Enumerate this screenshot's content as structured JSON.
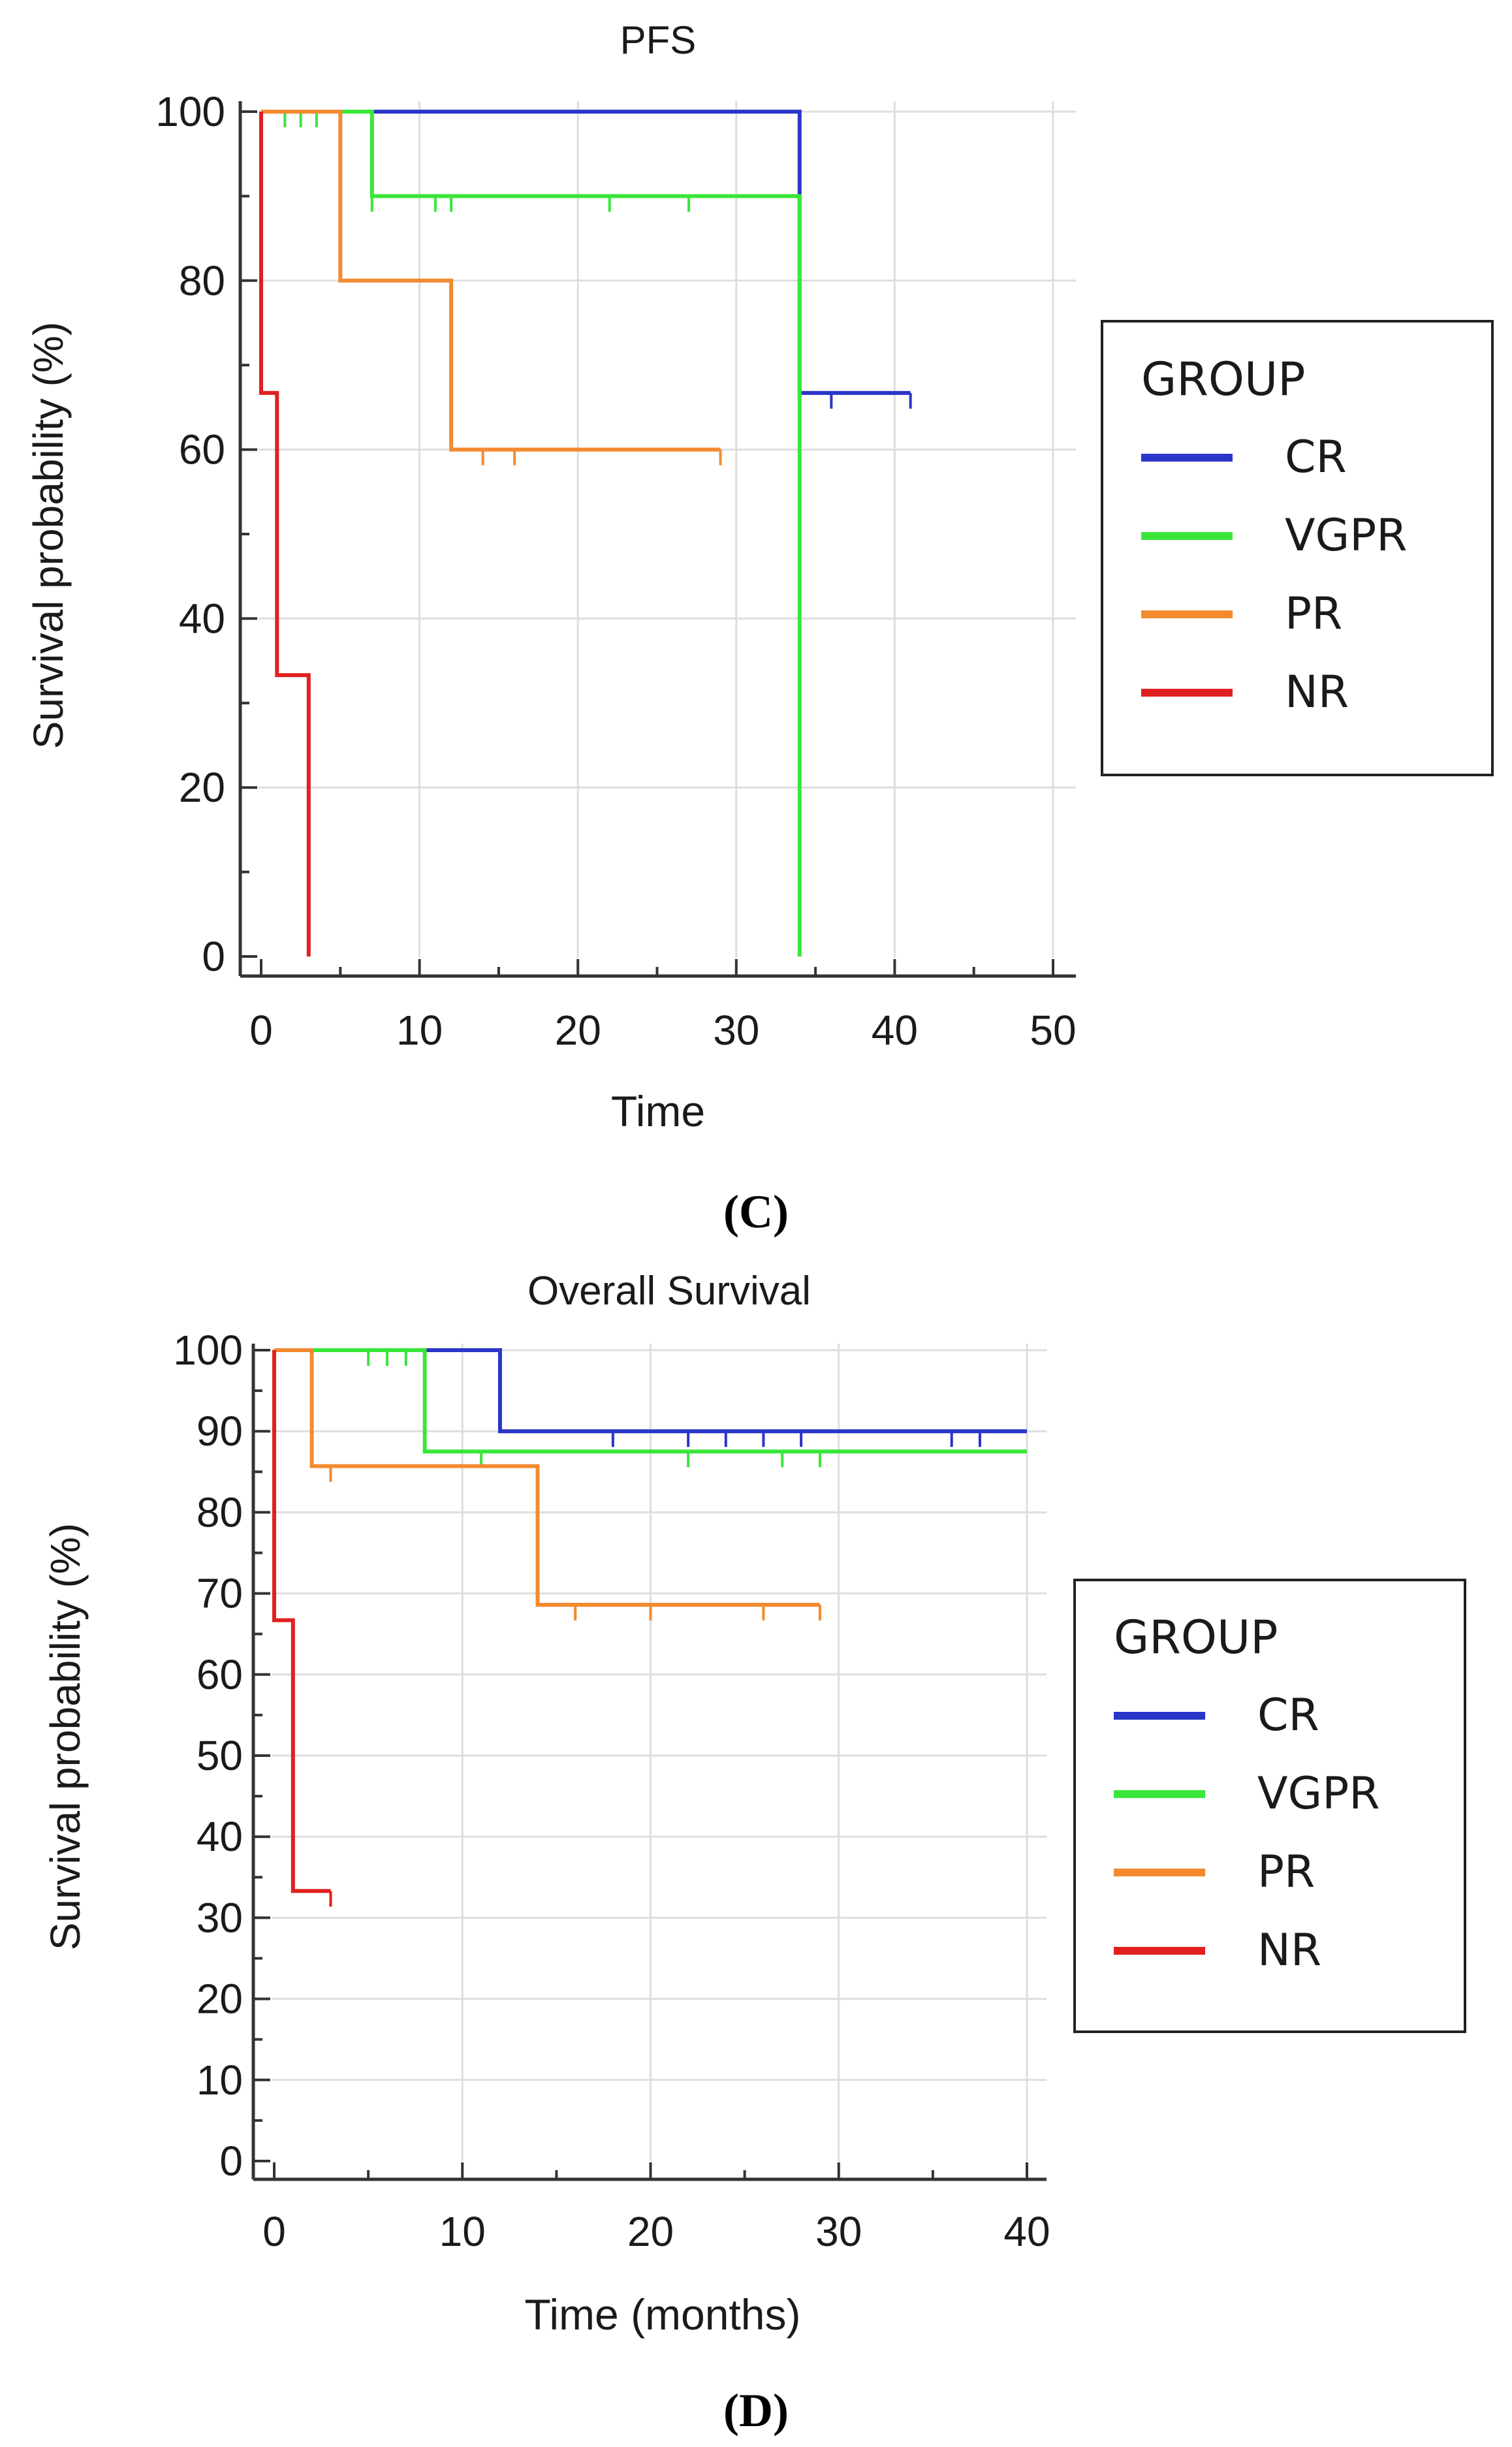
{
  "chart_data": [
    {
      "type": "line",
      "subtype": "kaplan-meier",
      "title": "PFS",
      "xlabel": "Time",
      "ylabel": "Survival probability (%)",
      "caption": "(C)",
      "xlim": [
        0,
        50
      ],
      "ylim": [
        0,
        100
      ],
      "xticks": [
        "0",
        "10",
        "20",
        "30",
        "40",
        "50"
      ],
      "yticks": [
        "0",
        "20",
        "40",
        "60",
        "80",
        "100"
      ],
      "grid": true,
      "legend": {
        "title": "GROUP",
        "position": "right"
      },
      "series": [
        {
          "name": "CR",
          "color": "#2a36c8",
          "steps": [
            [
              0,
              100
            ],
            [
              34,
              100
            ],
            [
              34,
              66.7
            ],
            [
              41,
              66.7
            ]
          ],
          "censored": [
            [
              36,
              66.7
            ],
            [
              41,
              66.7
            ]
          ]
        },
        {
          "name": "VGPR",
          "color": "#39e639",
          "steps": [
            [
              0,
              100
            ],
            [
              7,
              100
            ],
            [
              7,
              90
            ],
            [
              34,
              90
            ],
            [
              34,
              0
            ]
          ],
          "censored": [
            [
              1.5,
              100
            ],
            [
              2.5,
              100
            ],
            [
              3.5,
              100
            ],
            [
              5,
              100
            ],
            [
              7,
              90
            ],
            [
              11,
              90
            ],
            [
              12,
              90
            ],
            [
              22,
              90
            ],
            [
              27,
              90
            ]
          ]
        },
        {
          "name": "PR",
          "color": "#f38a30",
          "steps": [
            [
              0,
              100
            ],
            [
              5,
              100
            ],
            [
              5,
              80
            ],
            [
              12,
              80
            ],
            [
              12,
              60
            ],
            [
              29,
              60
            ]
          ],
          "censored": [
            [
              14,
              60
            ],
            [
              16,
              60
            ],
            [
              29,
              60
            ]
          ]
        },
        {
          "name": "NR",
          "color": "#e02020",
          "steps": [
            [
              0,
              100
            ],
            [
              0,
              66.7
            ],
            [
              1,
              66.7
            ],
            [
              1,
              33.3
            ],
            [
              3,
              33.3
            ],
            [
              3,
              0
            ]
          ],
          "censored": []
        }
      ]
    },
    {
      "type": "line",
      "subtype": "kaplan-meier",
      "title": "Overall Survival",
      "xlabel": "Time (months)",
      "ylabel": "Survival probability (%)",
      "caption": "(D)",
      "xlim": [
        0,
        40
      ],
      "ylim": [
        0,
        100
      ],
      "xticks": [
        "0",
        "10",
        "20",
        "30",
        "40"
      ],
      "yticks": [
        "0",
        "10",
        "20",
        "30",
        "40",
        "50",
        "60",
        "70",
        "80",
        "90",
        "100"
      ],
      "grid": true,
      "legend": {
        "title": "GROUP",
        "position": "right"
      },
      "series": [
        {
          "name": "CR",
          "color": "#2a36c8",
          "steps": [
            [
              0,
              100
            ],
            [
              12,
              100
            ],
            [
              12,
              90
            ],
            [
              40,
              90
            ]
          ],
          "censored": [
            [
              18,
              90
            ],
            [
              22,
              90
            ],
            [
              24,
              90
            ],
            [
              26,
              90
            ],
            [
              28,
              90
            ],
            [
              36,
              90
            ],
            [
              37.5,
              90
            ]
          ]
        },
        {
          "name": "VGPR",
          "color": "#39e639",
          "steps": [
            [
              0,
              100
            ],
            [
              8,
              100
            ],
            [
              8,
              87.5
            ],
            [
              40,
              87.5
            ]
          ],
          "censored": [
            [
              5,
              100
            ],
            [
              6,
              100
            ],
            [
              7,
              100
            ],
            [
              11,
              87.5
            ],
            [
              22,
              87.5
            ],
            [
              27,
              87.5
            ],
            [
              29,
              87.5
            ]
          ]
        },
        {
          "name": "PR",
          "color": "#f38a30",
          "steps": [
            [
              0,
              100
            ],
            [
              2,
              100
            ],
            [
              2,
              85.7
            ],
            [
              14,
              85.7
            ],
            [
              14,
              68.6
            ],
            [
              29,
              68.6
            ]
          ],
          "censored": [
            [
              3,
              85.7
            ],
            [
              16,
              68.6
            ],
            [
              20,
              68.6
            ],
            [
              26,
              68.6
            ],
            [
              29,
              68.6
            ]
          ]
        },
        {
          "name": "NR",
          "color": "#e02020",
          "steps": [
            [
              0,
              100
            ],
            [
              0,
              66.7
            ],
            [
              1,
              66.7
            ],
            [
              1,
              33.3
            ],
            [
              3,
              33.3
            ]
          ],
          "censored": [
            [
              3,
              33.3
            ]
          ]
        }
      ]
    }
  ]
}
